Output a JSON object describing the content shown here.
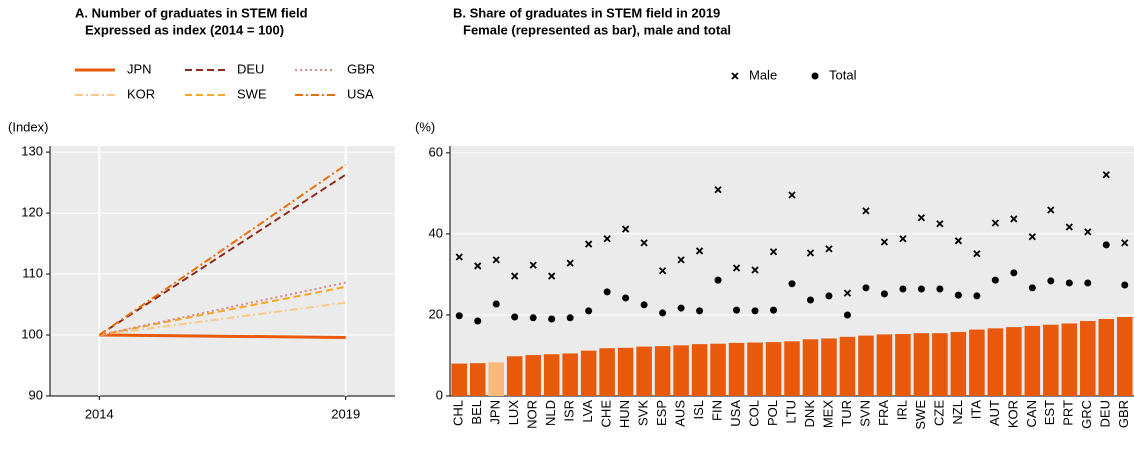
{
  "chart_data": [
    {
      "type": "line",
      "title": "A. Number of graduates in STEM field",
      "subtitle": "Expressed as index (2014 = 100)",
      "ylabel": "(Index)",
      "x": [
        2014,
        2019
      ],
      "xlim": [
        2013,
        2020
      ],
      "xticks": [
        2014,
        2019
      ],
      "ylim": [
        90,
        131
      ],
      "yticks": [
        90,
        100,
        110,
        120,
        130
      ],
      "grid": true,
      "series": [
        {
          "name": "JPN",
          "color": "#e8590c",
          "style": "solid",
          "values": [
            100,
            99.6
          ]
        },
        {
          "name": "KOR",
          "color": "#f9c98a",
          "style": "dashdot",
          "values": [
            100,
            105.3
          ]
        },
        {
          "name": "DEU",
          "color": "#8b2a1a",
          "style": "dashed",
          "values": [
            100,
            126.3
          ]
        },
        {
          "name": "SWE",
          "color": "#f5a623",
          "style": "dashed",
          "values": [
            100,
            107.9
          ]
        },
        {
          "name": "GBR",
          "color": "#d98a8a",
          "style": "dotted",
          "values": [
            100,
            108.6
          ]
        },
        {
          "name": "USA",
          "color": "#e8700c",
          "style": "dashdot",
          "values": [
            100,
            127.9
          ]
        }
      ]
    },
    {
      "type": "bar",
      "title": "B. Share of graduates in STEM field in 2019",
      "subtitle": "Female (represented as bar), male and total",
      "ylabel": "(%)",
      "ylim": [
        0,
        61.7
      ],
      "yticks": [
        0,
        20,
        40,
        60
      ],
      "grid": true,
      "categories": [
        "CHL",
        "BEL",
        "JPN",
        "LUX",
        "NOR",
        "NLD",
        "ISR",
        "LVA",
        "CHE",
        "HUN",
        "SVK",
        "ESP",
        "AUS",
        "ISL",
        "FIN",
        "USA",
        "COL",
        "POL",
        "LTU",
        "DNK",
        "MEX",
        "TUR",
        "SVN",
        "FRA",
        "IRL",
        "SWE",
        "CZE",
        "NZL",
        "ITA",
        "AUT",
        "KOR",
        "CAN",
        "EST",
        "PRT",
        "GRC",
        "DEU",
        "GBR"
      ],
      "series": [
        {
          "type": "bar",
          "colors": [
            "#e8590c",
            "#e8590c",
            "#f9b97a",
            "#e8590c",
            "#e8590c",
            "#e8590c",
            "#e8590c",
            "#e8590c",
            "#e8590c",
            "#e8590c",
            "#e8590c",
            "#e8590c",
            "#e8590c",
            "#e8590c",
            "#e8590c",
            "#e8590c",
            "#e8590c",
            "#e8590c",
            "#e8590c",
            "#e8590c",
            "#e8590c",
            "#e8590c",
            "#e8590c",
            "#e8590c",
            "#e8590c",
            "#e8590c",
            "#e8590c",
            "#e8590c",
            "#e8590c",
            "#e8590c",
            "#e8590c",
            "#e8590c",
            "#e8590c",
            "#e8590c",
            "#e8590c",
            "#e8590c",
            "#e8590c"
          ],
          "values": [
            8.0,
            8.1,
            8.3,
            9.8,
            10.1,
            10.3,
            10.5,
            11.2,
            11.8,
            11.9,
            12.2,
            12.3,
            12.5,
            12.8,
            12.9,
            13.1,
            13.2,
            13.3,
            13.5,
            14.0,
            14.2,
            14.6,
            14.9,
            15.2,
            15.3,
            15.5,
            15.5,
            15.8,
            16.4,
            16.7,
            17.0,
            17.3,
            17.6,
            17.9,
            18.5,
            19.0,
            19.5
          ]
        },
        {
          "name": "Male",
          "type": "scatter",
          "marker": "x",
          "color": "#000000",
          "values": [
            34.3,
            32.1,
            33.6,
            29.6,
            32.3,
            29.6,
            32.8,
            37.5,
            38.8,
            41.2,
            37.8,
            30.9,
            33.6,
            35.8,
            50.9,
            31.6,
            31.1,
            35.6,
            49.6,
            35.3,
            36.3,
            25.4,
            45.7,
            38.0,
            38.8,
            44.0,
            42.5,
            38.3,
            35.1,
            42.7,
            43.7,
            39.3,
            45.9,
            41.7,
            40.5,
            54.6,
            37.8
          ]
        },
        {
          "name": "Total",
          "type": "scatter",
          "marker": "dot",
          "color": "#000000",
          "values": [
            19.8,
            18.5,
            22.7,
            19.5,
            19.3,
            19.0,
            19.3,
            21.0,
            25.7,
            24.2,
            22.5,
            20.5,
            21.7,
            21.0,
            28.6,
            21.2,
            21.0,
            21.2,
            27.7,
            23.7,
            24.7,
            20.0,
            26.7,
            25.2,
            26.4,
            26.4,
            26.4,
            24.9,
            24.7,
            28.6,
            30.4,
            26.7,
            28.4,
            27.9,
            27.9,
            37.3,
            27.4
          ]
        }
      ]
    }
  ]
}
